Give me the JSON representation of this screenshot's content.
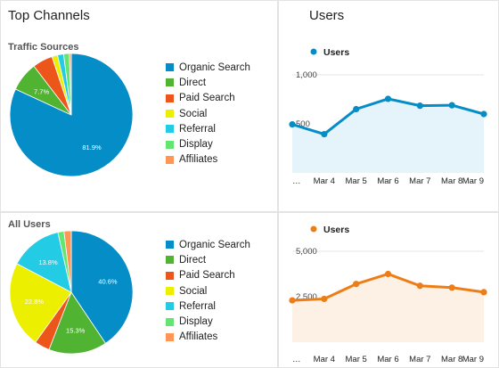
{
  "header": {
    "left_title": "Top Channels",
    "right_title": "Users"
  },
  "colors": {
    "organic": "#058dc7",
    "direct": "#50b432",
    "paid": "#ed561b",
    "social": "#edef00",
    "referral": "#24cbe5",
    "display": "#64e572",
    "affiliates": "#ff9655",
    "line_blue": "#058dc7",
    "line_orange": "#ed7e17",
    "fill_blue": "#e5f3fa",
    "fill_orange": "#fdf0e5"
  },
  "legend_items": [
    "Organic Search",
    "Direct",
    "Paid Search",
    "Social",
    "Referral",
    "Display",
    "Affiliates"
  ],
  "chart_data": [
    {
      "type": "pie",
      "title": "Traffic Sources",
      "categories": [
        "Organic Search",
        "Direct",
        "Paid Search",
        "Social",
        "Referral",
        "Display",
        "Affiliates"
      ],
      "values": [
        81.9,
        7.7,
        5.3,
        1.5,
        1.6,
        1.5,
        0.5
      ],
      "labels": [
        "81.9%",
        "7.7%",
        "",
        "",
        "",
        "",
        ""
      ]
    },
    {
      "type": "pie",
      "title": "All Users",
      "categories": [
        "Organic Search",
        "Direct",
        "Paid Search",
        "Social",
        "Referral",
        "Display",
        "Affiliates"
      ],
      "values": [
        40.6,
        15.3,
        4.0,
        22.8,
        13.8,
        1.6,
        1.9
      ],
      "labels": [
        "40.6%",
        "15.3%",
        "",
        "22.8%",
        "13.8%",
        "",
        ""
      ]
    },
    {
      "type": "line",
      "legend": "Users",
      "x": [
        "…",
        "Mar 4",
        "Mar 5",
        "Mar 6",
        "Mar 7",
        "Mar 8",
        "Mar 9"
      ],
      "y_ticks": [
        "1,000",
        "500"
      ],
      "ylim": [
        0,
        1000
      ],
      "values": [
        495,
        395,
        650,
        755,
        685,
        690,
        600
      ]
    },
    {
      "type": "line",
      "legend": "Users",
      "x": [
        "…",
        "Mar 4",
        "Mar 5",
        "Mar 6",
        "Mar 7",
        "Mar 8",
        "Mar 9"
      ],
      "y_ticks": [
        "5,000",
        "2,500"
      ],
      "ylim": [
        0,
        5000
      ],
      "values": [
        2300,
        2380,
        3200,
        3750,
        3100,
        3000,
        2750
      ]
    }
  ]
}
